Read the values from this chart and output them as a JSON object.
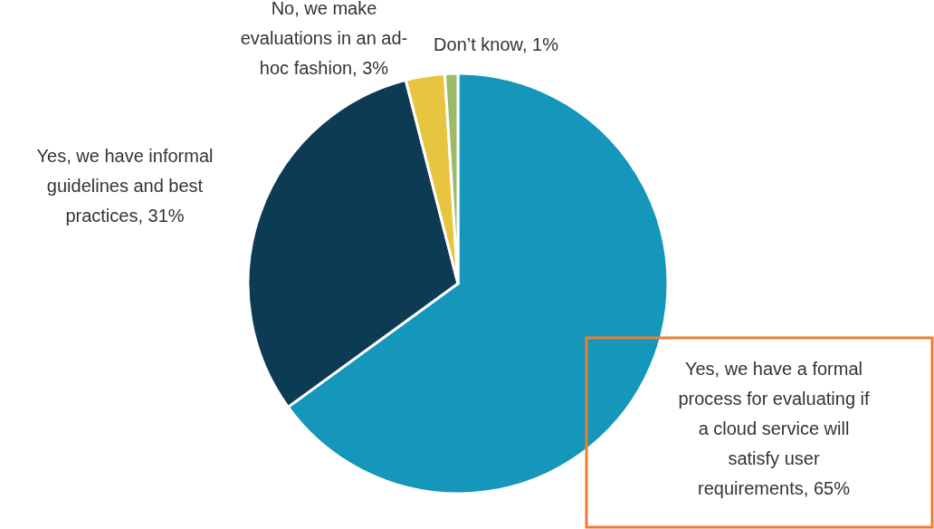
{
  "chart_data": {
    "type": "pie",
    "categories": [
      "Yes, we have a formal process for evaluating if a cloud service will satisfy user requirements",
      "Yes, we have informal guidelines and best practices",
      "No, we make evaluations in an ad-hoc fashion",
      "Don’t know"
    ],
    "values": [
      65,
      31,
      3,
      1
    ],
    "value_labels": [
      "65%",
      "31%",
      "3%",
      "1%"
    ],
    "colors": [
      "#1596bb",
      "#0e3b54",
      "#e8c53f",
      "#9bbb6a"
    ]
  }
}
